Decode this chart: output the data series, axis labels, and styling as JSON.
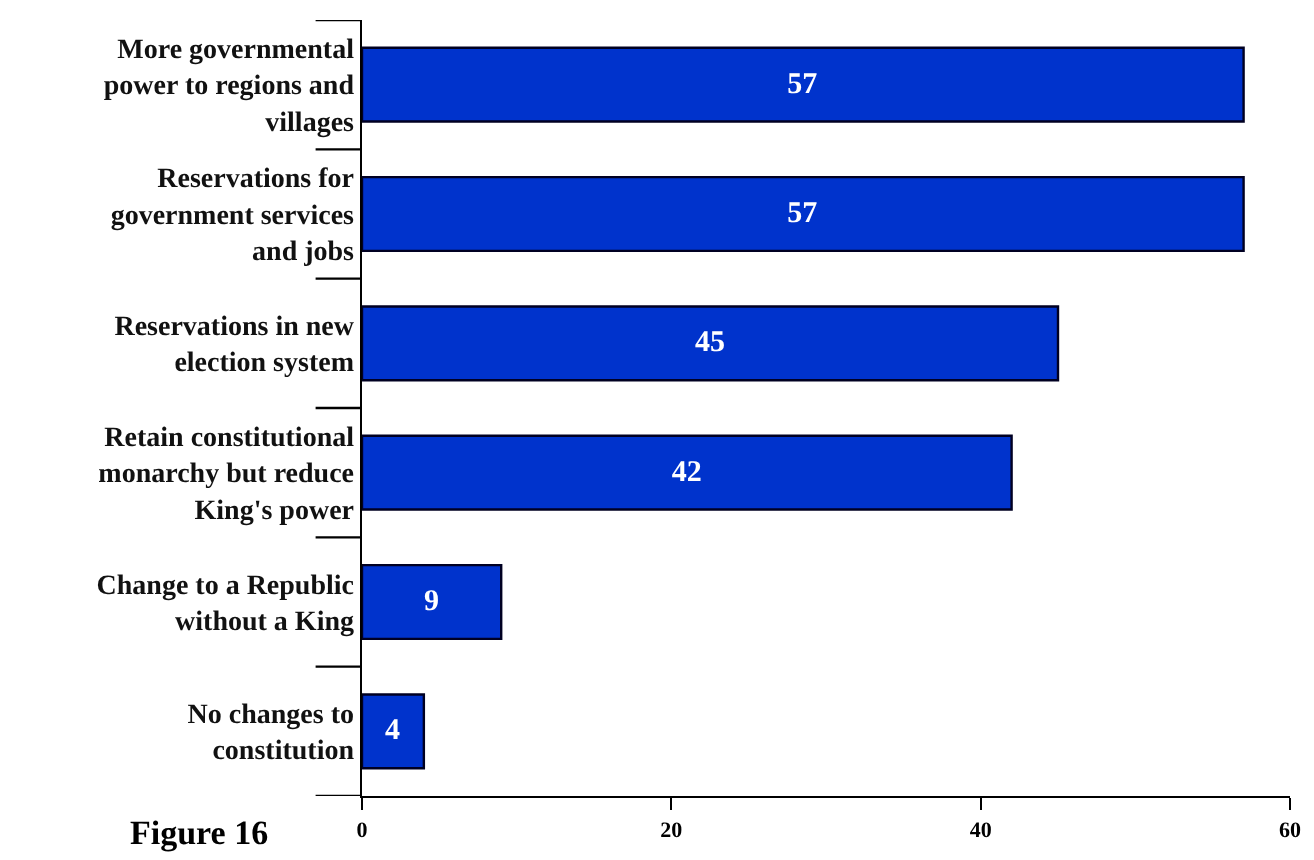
{
  "chart_data": {
    "type": "bar",
    "orientation": "horizontal",
    "categories": [
      "More governmental power to regions and villages",
      "Reservations for government services and jobs",
      "Reservations in new election system",
      "Retain constitutional monarchy but reduce King's power",
      "Change to a Republic without a King",
      "No changes to constitution"
    ],
    "values": [
      57,
      57,
      45,
      42,
      9,
      4
    ],
    "color": "#0033cc",
    "xlim": [
      0,
      60
    ],
    "xticks": [
      0,
      20,
      40,
      60
    ],
    "data_labels": true,
    "annotations": [
      "Figure 16"
    ]
  }
}
